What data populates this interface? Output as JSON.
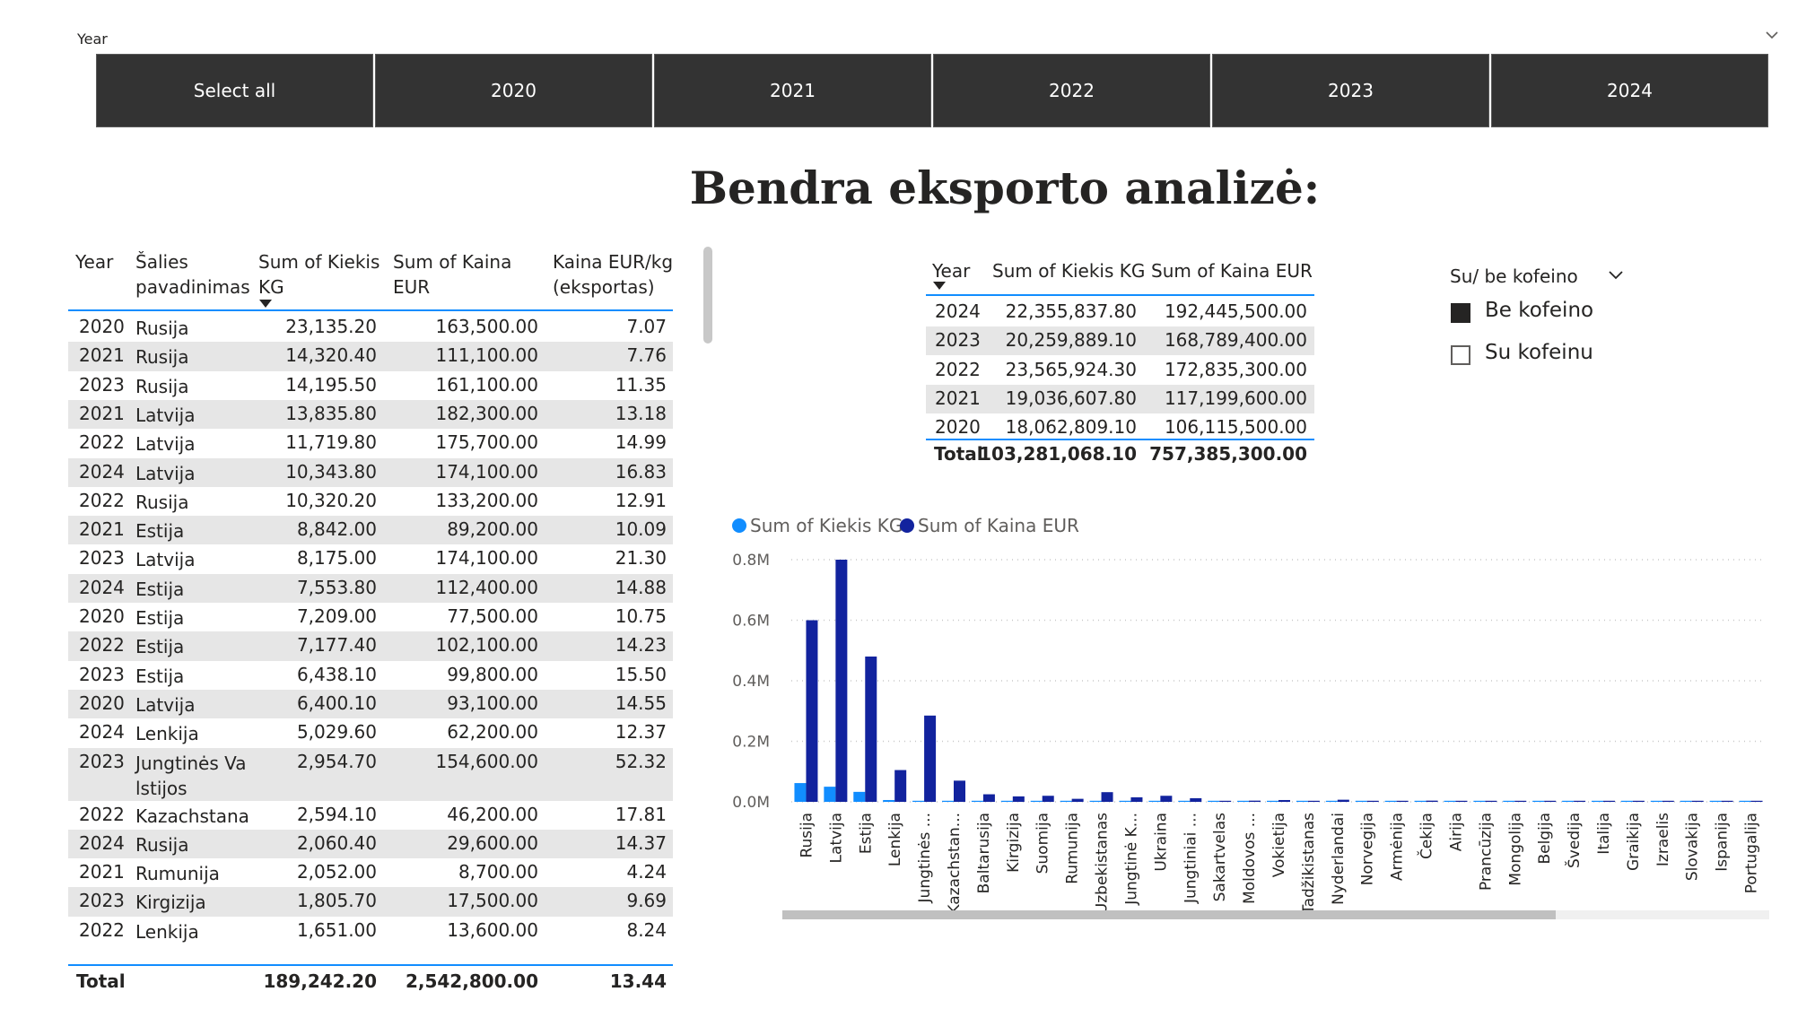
{
  "slicer": {
    "label": "Year",
    "options": [
      "Select all",
      "2020",
      "2021",
      "2022",
      "2023",
      "2024"
    ],
    "color": "#333333"
  },
  "title": "Bendra eksporto analizė:",
  "left_table": {
    "headers": [
      "Year",
      "Šalies pavadinimas",
      "Sum of Kiekis KG",
      "Sum of Kaina EUR",
      "Kaina EUR/kg (eksportas)"
    ],
    "rows": [
      [
        "2020",
        "Rusija",
        "23,135.20",
        "163,500.00",
        "7.07"
      ],
      [
        "2021",
        "Rusija",
        "14,320.40",
        "111,100.00",
        "7.76"
      ],
      [
        "2023",
        "Rusija",
        "14,195.50",
        "161,100.00",
        "11.35"
      ],
      [
        "2021",
        "Latvija",
        "13,835.80",
        "182,300.00",
        "13.18"
      ],
      [
        "2022",
        "Latvija",
        "11,719.80",
        "175,700.00",
        "14.99"
      ],
      [
        "2024",
        "Latvija",
        "10,343.80",
        "174,100.00",
        "16.83"
      ],
      [
        "2022",
        "Rusija",
        "10,320.20",
        "133,200.00",
        "12.91"
      ],
      [
        "2021",
        "Estija",
        "8,842.00",
        "89,200.00",
        "10.09"
      ],
      [
        "2023",
        "Latvija",
        "8,175.00",
        "174,100.00",
        "21.30"
      ],
      [
        "2024",
        "Estija",
        "7,553.80",
        "112,400.00",
        "14.88"
      ],
      [
        "2020",
        "Estija",
        "7,209.00",
        "77,500.00",
        "10.75"
      ],
      [
        "2022",
        "Estija",
        "7,177.40",
        "102,100.00",
        "14.23"
      ],
      [
        "2023",
        "Estija",
        "6,438.10",
        "99,800.00",
        "15.50"
      ],
      [
        "2020",
        "Latvija",
        "6,400.10",
        "93,100.00",
        "14.55"
      ],
      [
        "2024",
        "Lenkija",
        "5,029.60",
        "62,200.00",
        "12.37"
      ],
      [
        "2023",
        "Jungtinės Valstijos",
        "2,954.70",
        "154,600.00",
        "52.32"
      ],
      [
        "2022",
        "Kazachstana s",
        "2,594.10",
        "46,200.00",
        "17.81"
      ],
      [
        "2024",
        "Rusija",
        "2,060.40",
        "29,600.00",
        "14.37"
      ],
      [
        "2021",
        "Rumunija",
        "2,052.00",
        "8,700.00",
        "4.24"
      ],
      [
        "2023",
        "Kirgizija",
        "1,805.70",
        "17,500.00",
        "9.69"
      ],
      [
        "2022",
        "Lenkija",
        "1,651.00",
        "13,600.00",
        "8.24"
      ]
    ],
    "total": [
      "Total",
      "189,242.20",
      "2,542,800.00",
      "13.44"
    ],
    "stripe_color": "#e6e6e6",
    "line_color": "#118dff"
  },
  "right_table": {
    "headers": [
      "Year",
      "Sum of Kiekis KG",
      "Sum of Kaina EUR"
    ],
    "rows": [
      [
        "2024",
        "22,355,837.80",
        "192,445,500.00"
      ],
      [
        "2023",
        "20,259,889.10",
        "168,789,400.00"
      ],
      [
        "2022",
        "23,565,924.30",
        "172,835,300.00"
      ],
      [
        "2021",
        "19,036,607.80",
        "117,199,600.00"
      ],
      [
        "2020",
        "18,062,809.10",
        "106,115,500.00"
      ]
    ],
    "total": [
      "Total",
      "103,281,068.10",
      "757,385,300.00"
    ]
  },
  "kofein_slicer": {
    "title": "Su/ be kofeino",
    "options": [
      {
        "label": "Be kofeino",
        "checked": true
      },
      {
        "label": "Su kofeinu",
        "checked": false
      }
    ]
  },
  "chart_data": {
    "type": "bar",
    "legend_position": "top-left",
    "categories": [
      "Rusija",
      "Latvija",
      "Estija",
      "Lenkija",
      "Jungtinės ...",
      "Kazachstan...",
      "Baltarusija",
      "Kirgizija",
      "Suomija",
      "Rumunija",
      "Uzbekistanas",
      "Jungtinė K...",
      "Ukraina",
      "Jungtiniai ...",
      "Sakartvelas",
      "Moldovos ...",
      "Vokietija",
      "Tadžikistanas",
      "Nyderlandai",
      "Norvegija",
      "Armėnija",
      "Čekija",
      "Airija",
      "Prancūzija",
      "Mongolija",
      "Belgija",
      "Švedija",
      "Italija",
      "Graikija",
      "Izraelis",
      "Slovakija",
      "Ispanija",
      "Portugalija"
    ],
    "series": [
      {
        "name": "Sum of Kiekis KG",
        "color": "#118dff",
        "values": [
          62000,
          50000,
          33000,
          6000,
          3000,
          3000,
          1500,
          1200,
          1000,
          800,
          1000,
          600,
          800,
          400,
          200,
          200,
          200,
          100,
          150,
          100,
          100,
          100,
          80,
          80,
          80,
          80,
          80,
          60,
          60,
          50,
          40,
          40,
          30
        ]
      },
      {
        "name": "Sum of Kaina EUR",
        "color": "#12239e",
        "values": [
          600000,
          800000,
          480000,
          105000,
          285000,
          70000,
          25000,
          18000,
          20000,
          10000,
          32000,
          15000,
          20000,
          12000,
          3000,
          4000,
          6000,
          2000,
          7000,
          3000,
          3000,
          4000,
          2000,
          3000,
          3000,
          3000,
          2000,
          2000,
          1500,
          1000,
          1000,
          1000,
          1000
        ]
      }
    ],
    "y_ticks": [
      "0.0M",
      "0.2M",
      "0.4M",
      "0.6M",
      "0.8M"
    ],
    "ylim": [
      0,
      800000
    ],
    "grid": true
  }
}
